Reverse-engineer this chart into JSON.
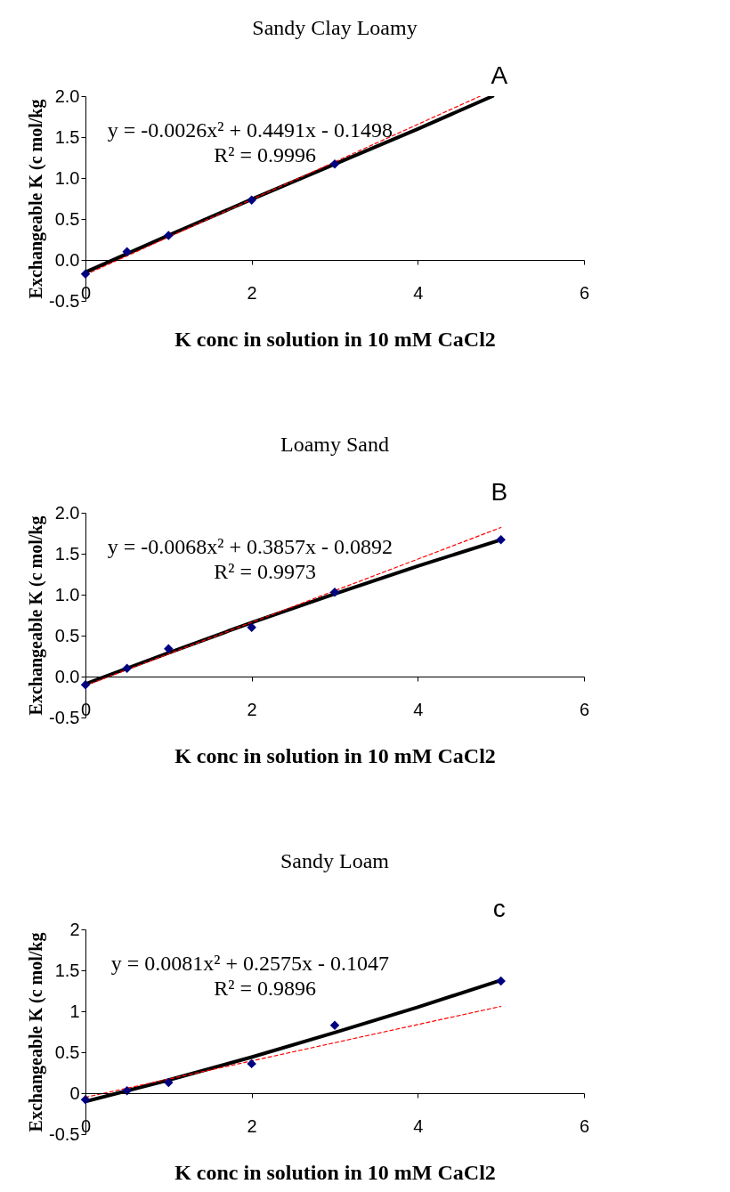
{
  "chart_data": [
    {
      "type": "scatter",
      "title": "Sandy Clay Loamy",
      "xlabel": "K conc in solution in 10 mM CaCl2",
      "ylabel": "Exchangeable K (c mol/kg",
      "annotations": [
        "y = -0.0026x² + 0.4491x - 0.1498",
        "R² = 0.9996",
        "A"
      ],
      "series": [
        {
          "type": "line",
          "color": "#000000",
          "x": [
            0,
            1,
            2,
            3,
            4,
            4.9
          ],
          "values": [
            -0.15,
            0.3,
            0.74,
            1.17,
            1.6,
            2.0
          ]
        },
        {
          "type": "line",
          "color": "#ff0000",
          "line_style": "dashed",
          "x": [
            0,
            4.75
          ],
          "values": [
            -0.18,
            2.0
          ]
        },
        {
          "type": "scatter",
          "color": "#000080",
          "marker": "diamond",
          "x": [
            0,
            0.5,
            1,
            2,
            3
          ],
          "values": [
            -0.17,
            0.1,
            0.3,
            0.73,
            1.17
          ]
        }
      ],
      "xlim": [
        0,
        6
      ],
      "xticks": [
        0,
        2,
        4,
        6
      ],
      "ylim": [
        -0.5,
        2.0
      ],
      "yticks": [
        -0.5,
        {
          "value": 0,
          "label": "0.0"
        },
        0.5,
        {
          "value": 1,
          "label": "1.0"
        },
        1.5,
        {
          "value": 2,
          "label": "2.0"
        }
      ],
      "grid": false
    },
    {
      "type": "scatter",
      "title": "Loamy Sand",
      "xlabel": "K conc in solution in 10 mM CaCl2",
      "ylabel": "Exchangeable K (c mol/kg",
      "annotations": [
        "y = -0.0068x² + 0.3857x - 0.0892",
        "R² = 0.9973",
        "B"
      ],
      "series": [
        {
          "type": "line",
          "color": "#000000",
          "x": [
            0,
            1,
            2,
            3,
            4,
            5
          ],
          "values": [
            -0.09,
            0.29,
            0.66,
            1.01,
            1.35,
            1.67
          ]
        },
        {
          "type": "line",
          "color": "#ff0000",
          "line_style": "dashed",
          "x": [
            0,
            5
          ],
          "values": [
            -0.11,
            1.82
          ]
        },
        {
          "type": "scatter",
          "color": "#000080",
          "marker": "diamond",
          "x": [
            0,
            0.5,
            1,
            2,
            3,
            5
          ],
          "values": [
            -0.1,
            0.1,
            0.34,
            0.6,
            1.03,
            1.67
          ]
        }
      ],
      "xlim": [
        0,
        6
      ],
      "xticks": [
        0,
        2,
        4,
        6
      ],
      "ylim": [
        -0.5,
        2.0
      ],
      "yticks": [
        -0.5,
        {
          "value": 0,
          "label": "0.0"
        },
        0.5,
        {
          "value": 1,
          "label": "1.0"
        },
        1.5,
        {
          "value": 2,
          "label": "2.0"
        }
      ],
      "grid": false
    },
    {
      "type": "scatter",
      "title": "Sandy Loam",
      "xlabel": "K conc in solution in 10 mM CaCl2",
      "ylabel": "Exchangeable K (c mol/kg",
      "annotations": [
        "y = 0.0081x² + 0.2575x - 0.1047",
        "R² = 0.9896",
        "c"
      ],
      "series": [
        {
          "type": "line",
          "color": "#000000",
          "x": [
            0,
            1,
            2,
            3,
            4,
            5
          ],
          "values": [
            -0.1,
            0.16,
            0.44,
            0.74,
            1.05,
            1.38
          ]
        },
        {
          "type": "line",
          "color": "#ff0000",
          "line_style": "dashed",
          "x": [
            0,
            5
          ],
          "values": [
            -0.05,
            1.06
          ]
        },
        {
          "type": "scatter",
          "color": "#000080",
          "marker": "diamond",
          "x": [
            0,
            0.5,
            1,
            2,
            3,
            5
          ],
          "values": [
            -0.08,
            0.03,
            0.13,
            0.36,
            0.83,
            1.37
          ]
        }
      ],
      "xlim": [
        0,
        6
      ],
      "xticks": [
        0,
        2,
        4,
        6
      ],
      "ylim": [
        -0.5,
        2
      ],
      "yticks": [
        -0.5,
        0,
        0.5,
        1,
        1.5,
        2
      ],
      "grid": false
    }
  ]
}
